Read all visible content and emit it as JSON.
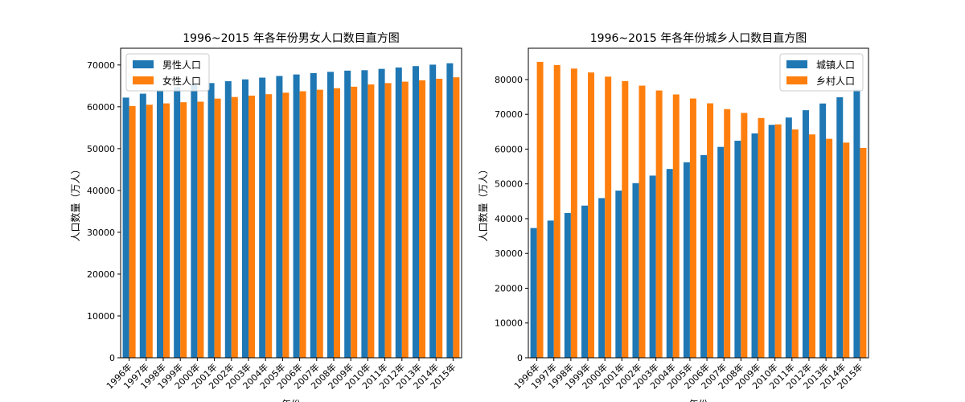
{
  "chart_data": [
    {
      "type": "bar",
      "title": "1996~2015 年各年份男女人口数目直方图",
      "xlabel": "年份",
      "ylabel": "人口数量（万人）",
      "categories": [
        "1996年",
        "1997年",
        "1998年",
        "1999年",
        "2000年",
        "2001年",
        "2002年",
        "2003年",
        "2004年",
        "2005年",
        "2006年",
        "2007年",
        "2008年",
        "2009年",
        "2010年",
        "2011年",
        "2012年",
        "2013年",
        "2014年",
        "2015年"
      ],
      "ylim": [
        0,
        74000
      ],
      "yticks": [
        0,
        10000,
        20000,
        30000,
        40000,
        50000,
        60000,
        70000
      ],
      "legend": "top-left",
      "series": [
        {
          "name": "男性人口",
          "color": "#1f77b4",
          "values": [
            62200,
            63131,
            63940,
            64692,
            65437,
            65672,
            66115,
            66556,
            66976,
            67375,
            67728,
            68048,
            68357,
            68647,
            68748,
            69068,
            69395,
            69728,
            70079,
            70414
          ]
        },
        {
          "name": "女性人口",
          "color": "#ff7f0e",
          "values": [
            60189,
            60495,
            60819,
            61094,
            61228,
            61955,
            62338,
            62671,
            63012,
            63381,
            63720,
            64081,
            64445,
            64803,
            65343,
            65667,
            66009,
            66344,
            66703,
            67048
          ]
        }
      ]
    },
    {
      "type": "bar",
      "title": "1996~2015 年各年份城乡人口数目直方图",
      "xlabel": "年份",
      "ylabel": "人口数量（万人）",
      "categories": [
        "1996年",
        "1997年",
        "1998年",
        "1999年",
        "2000年",
        "2001年",
        "2002年",
        "2003年",
        "2004年",
        "2005年",
        "2006年",
        "2007年",
        "2008年",
        "2009年",
        "2010年",
        "2011年",
        "2012年",
        "2013年",
        "2014年",
        "2015年"
      ],
      "ylim": [
        0,
        89000
      ],
      "yticks": [
        0,
        10000,
        20000,
        30000,
        40000,
        50000,
        60000,
        70000,
        80000
      ],
      "legend": "top-right",
      "series": [
        {
          "name": "城镇人口",
          "color": "#1f77b4",
          "values": [
            37304,
            39449,
            41608,
            43748,
            45906,
            48064,
            50212,
            52376,
            54283,
            56212,
            58288,
            60633,
            62403,
            64512,
            66978,
            69079,
            71182,
            73111,
            74916,
            77116
          ]
        },
        {
          "name": "乡村人口",
          "color": "#ff7f0e",
          "values": [
            85085,
            84177,
            83153,
            82038,
            80837,
            79563,
            78241,
            76851,
            75705,
            74544,
            73160,
            71496,
            70399,
            68938,
            67113,
            65656,
            64222,
            62961,
            61866,
            60346
          ]
        }
      ]
    }
  ]
}
